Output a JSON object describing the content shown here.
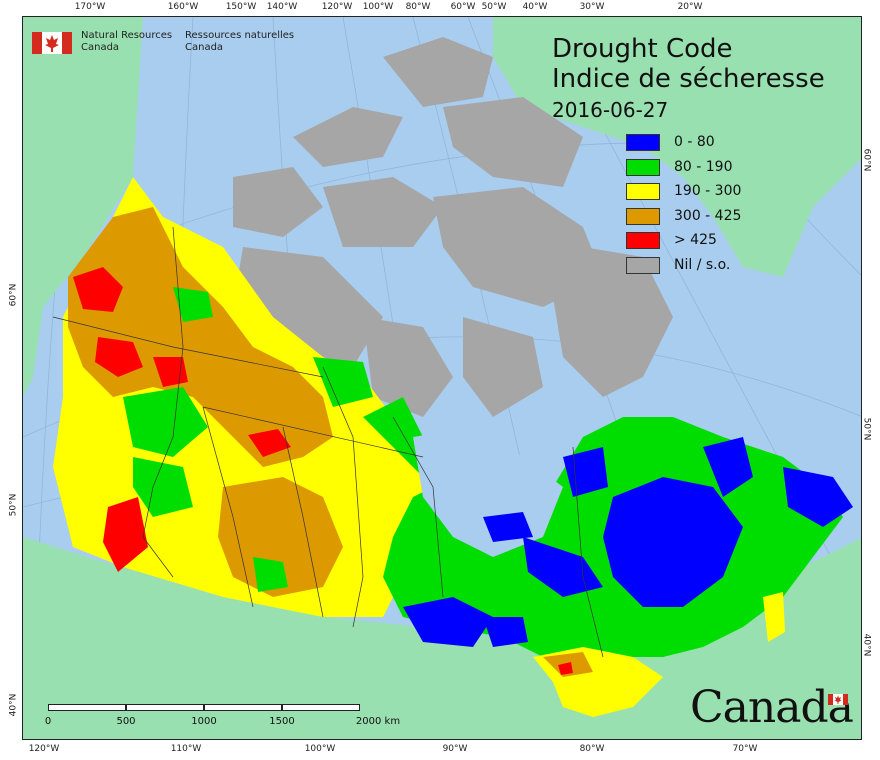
{
  "title": {
    "line1": "Drought Code",
    "line2": "Indice de sécheresse",
    "date": "2016-06-27"
  },
  "agency": {
    "name_en_1": "Natural Resources",
    "name_en_2": "Canada",
    "name_fr_1": "Ressources naturelles",
    "name_fr_2": "Canada"
  },
  "legend": [
    {
      "label": "0 - 80",
      "color": "#0000ff"
    },
    {
      "label": "80 - 190",
      "color": "#00dd00"
    },
    {
      "label": "190 - 300",
      "color": "#ffff00"
    },
    {
      "label": "300 - 425",
      "color": "#dd9900"
    },
    {
      "label": "> 425",
      "color": "#ff0000"
    },
    {
      "label": "Nil / s.o.",
      "color": "#a6a6a6"
    }
  ],
  "colors": {
    "ocean": "#a9cdee",
    "foreign_land": "#99e0b0",
    "nil": "#a6a6a6",
    "flag_red": "#d52b1e"
  },
  "axes": {
    "top": [
      "170°W",
      "160°W",
      "150°W",
      "140°W",
      "120°W",
      "100°W",
      "80°W",
      "60°W",
      "50°W",
      "40°W",
      "30°W",
      "20°W"
    ],
    "bottom": [
      "120°W",
      "110°W",
      "100°W",
      "90°W",
      "80°W",
      "70°W"
    ],
    "left": [
      "60°N",
      "50°N",
      "40°N"
    ],
    "right": [
      "60°N",
      "50°N",
      "40°N"
    ]
  },
  "scalebar": {
    "labels": [
      "0",
      "500",
      "1000",
      "1500",
      "2000 km"
    ]
  },
  "wordmark": "Canada"
}
